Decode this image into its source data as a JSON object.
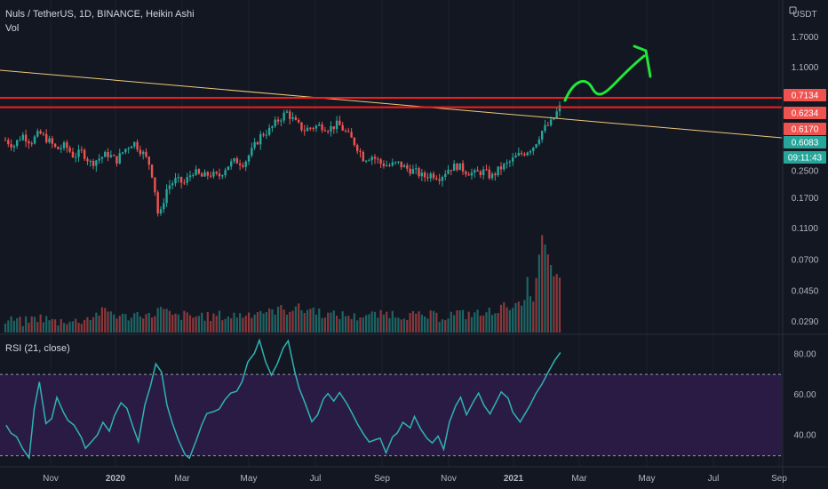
{
  "header": {
    "symbol_line": "Nuls / TetherUS, 1D, BINANCE, Heikin Ashi",
    "vol_label": "Vol",
    "rsi_label": "RSI (21, close)",
    "currency": "USDT"
  },
  "colors": {
    "background": "#131722",
    "up": "#26a69a",
    "down": "#ef5350",
    "resistance": "#ff1a1a",
    "trendline": "#f0c87a",
    "rsi_line": "#2fb3b3",
    "rsi_band": "#2a1b45",
    "arrow": "#22e63a"
  },
  "chart_data": {
    "type": "candlestick",
    "scale": "log",
    "price_axis": [
      "1.7000",
      "1.1000",
      "0.2500",
      "0.1700",
      "0.1100",
      "0.0700",
      "0.0450",
      "0.0290"
    ],
    "price_tags": [
      {
        "text": "0.7134",
        "kind": "resistance"
      },
      {
        "text": "0.6234",
        "kind": "resistance"
      },
      {
        "text": "0.6170",
        "kind": "red"
      },
      {
        "text": "0.6083",
        "kind": "green"
      },
      {
        "text": "09:11:43",
        "kind": "countdown"
      }
    ],
    "resistance_levels": [
      0.7134,
      0.6234
    ],
    "x_tick_labels": [
      "Nov",
      "2020",
      "Mar",
      "May",
      "Jul",
      "Sep",
      "Nov",
      "2021",
      "Mar",
      "May",
      "Jul",
      "Sep"
    ],
    "price_path": [
      0.39,
      0.36,
      0.42,
      0.38,
      0.43,
      0.39,
      0.34,
      0.36,
      0.31,
      0.33,
      0.28,
      0.3,
      0.32,
      0.29,
      0.34,
      0.38,
      0.33,
      0.27,
      0.12,
      0.2,
      0.22,
      0.21,
      0.25,
      0.23,
      0.24,
      0.23,
      0.27,
      0.29,
      0.28,
      0.34,
      0.42,
      0.45,
      0.52,
      0.58,
      0.5,
      0.45,
      0.47,
      0.48,
      0.46,
      0.49,
      0.43,
      0.37,
      0.3,
      0.31,
      0.28,
      0.27,
      0.28,
      0.26,
      0.25,
      0.23,
      0.24,
      0.23,
      0.26,
      0.27,
      0.25,
      0.24,
      0.25,
      0.23,
      0.26,
      0.28,
      0.31,
      0.33,
      0.36,
      0.45,
      0.5,
      0.62
    ],
    "volume_path": [
      0.028,
      0.029,
      0.028,
      0.029,
      0.03,
      0.029,
      0.028,
      0.029,
      0.028,
      0.029,
      0.03,
      0.032,
      0.033,
      0.031,
      0.03,
      0.031,
      0.032,
      0.03,
      0.034,
      0.032,
      0.03,
      0.031,
      0.03,
      0.031,
      0.03,
      0.031,
      0.03,
      0.031,
      0.031,
      0.032,
      0.033,
      0.032,
      0.034,
      0.033,
      0.035,
      0.033,
      0.034,
      0.032,
      0.031,
      0.031,
      0.031,
      0.03,
      0.031,
      0.031,
      0.031,
      0.032,
      0.031,
      0.031,
      0.031,
      0.03,
      0.031,
      0.03,
      0.031,
      0.032,
      0.031,
      0.032,
      0.031,
      0.033,
      0.034,
      0.036,
      0.035,
      0.036,
      0.04,
      0.09,
      0.06,
      0.05
    ],
    "rsi": {
      "period": 21,
      "source": "close",
      "axis": [
        "80.00",
        "60.00",
        "40.00"
      ],
      "ylim": [
        25,
        88
      ],
      "bands": [
        70,
        30
      ],
      "values": [
        44,
        41,
        38,
        35,
        30,
        55,
        65,
        45,
        50,
        60,
        52,
        48,
        45,
        40,
        35,
        38,
        42,
        45,
        42,
        48,
        55,
        52,
        45,
        38,
        55,
        65,
        75,
        70,
        55,
        48,
        40,
        32,
        30,
        37,
        45,
        52,
        50,
        55,
        58,
        62,
        60,
        68,
        75,
        80,
        86,
        78,
        70,
        75,
        84,
        86,
        70,
        62,
        55,
        48,
        52,
        57,
        60,
        58,
        62,
        55,
        50,
        45,
        40,
        35,
        36,
        38,
        33,
        38,
        42,
        46,
        44,
        48,
        42,
        40,
        36,
        38,
        34,
        45,
        55,
        60,
        52,
        57,
        62,
        55,
        50,
        56,
        62,
        60,
        50,
        48,
        52,
        56,
        62,
        66,
        70,
        76,
        80
      ]
    }
  }
}
